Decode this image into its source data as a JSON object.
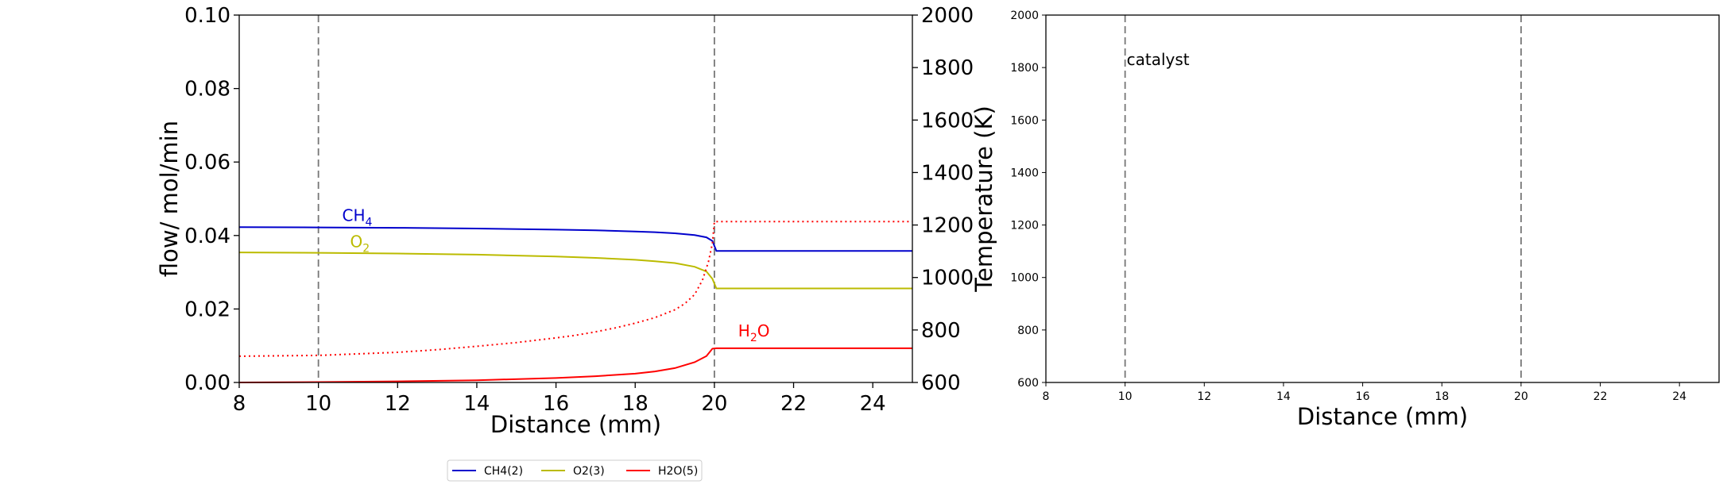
{
  "chart_data": [
    {
      "type": "line",
      "xlabel": "Distance (mm)",
      "ylabel": "flow/ mol/min",
      "y2label": "Temperature (K)",
      "xlim": [
        8,
        25
      ],
      "ylim": [
        0,
        0.1
      ],
      "y2lim": [
        600,
        2000
      ],
      "xticks": [
        "8",
        "10",
        "12",
        "14",
        "16",
        "18",
        "20",
        "22",
        "24"
      ],
      "yticks": [
        "0.00",
        "0.02",
        "0.04",
        "0.06",
        "0.08",
        "0.10"
      ],
      "y2ticks": [
        "600",
        "800",
        "1000",
        "1200",
        "1400",
        "1600",
        "1800",
        "2000"
      ],
      "vlines": [
        10,
        20
      ],
      "series": [
        {
          "name": "CH4(2)",
          "color": "#0000cc",
          "style": "solid",
          "axis": "left",
          "x": [
            8,
            10,
            12,
            14,
            16,
            17,
            18,
            18.5,
            19,
            19.5,
            19.8,
            19.95,
            20.05,
            20.3,
            22,
            24,
            25
          ],
          "values": [
            0.0423,
            0.0422,
            0.0421,
            0.0419,
            0.0416,
            0.0414,
            0.0411,
            0.0409,
            0.0406,
            0.0401,
            0.0395,
            0.0385,
            0.0358,
            0.0358,
            0.0358,
            0.0358,
            0.0358
          ],
          "label": "CH",
          "label_sub": "4",
          "label_pos": [
            10.6,
            0.044
          ]
        },
        {
          "name": "O2(3)",
          "color": "#bbbb00",
          "style": "solid",
          "axis": "left",
          "x": [
            8,
            10,
            12,
            14,
            16,
            17,
            18,
            18.5,
            19,
            19.5,
            19.8,
            19.95,
            20.05,
            20.3,
            22,
            24,
            25
          ],
          "values": [
            0.0354,
            0.0353,
            0.0351,
            0.0348,
            0.0343,
            0.0339,
            0.0334,
            0.033,
            0.0325,
            0.0315,
            0.0302,
            0.0282,
            0.0256,
            0.0256,
            0.0256,
            0.0256,
            0.0256
          ],
          "label": "O",
          "label_sub": "2",
          "label_pos": [
            10.8,
            0.0368
          ]
        },
        {
          "name": "H2O(5)",
          "color": "#ff0000",
          "style": "solid",
          "axis": "left",
          "x": [
            8,
            10,
            12,
            14,
            16,
            17,
            18,
            18.5,
            19,
            19.5,
            19.8,
            19.95,
            20.05,
            20.3,
            22,
            24,
            25
          ],
          "values": [
            0.0,
            0.0001,
            0.0003,
            0.0006,
            0.0012,
            0.0017,
            0.0024,
            0.003,
            0.0039,
            0.0055,
            0.0072,
            0.0092,
            0.0093,
            0.0093,
            0.0093,
            0.0093,
            0.0093
          ],
          "label": "H",
          "label_sub": "2",
          "label_tail": "O",
          "label_pos": [
            20.6,
            0.0125
          ]
        },
        {
          "color": "#ff0000",
          "style": "dotted",
          "axis": "right",
          "x": [
            8,
            10,
            12,
            13,
            14,
            15,
            16,
            16.5,
            17,
            17.5,
            18,
            18.5,
            19,
            19.25,
            19.5,
            19.7,
            19.85,
            19.95,
            20.0,
            20.1,
            22,
            24,
            25
          ],
          "values": [
            700,
            703,
            715,
            725,
            738,
            752,
            770,
            780,
            793,
            808,
            826,
            847,
            877,
            900,
            935,
            990,
            1060,
            1130,
            1213,
            1213,
            1213,
            1213,
            1213
          ]
        }
      ],
      "legend": {
        "placement": "lower center",
        "entries": [
          {
            "label": "CH4(2)",
            "color": "#0000cc"
          },
          {
            "label": "O2(3)",
            "color": "#bbbb00"
          },
          {
            "label": "H2O(5)",
            "color": "#ff0000"
          }
        ]
      }
    },
    {
      "type": "line",
      "xlabel": "Distance (mm)",
      "ylabel": "",
      "xlim": [
        8,
        25
      ],
      "ylim": [
        600,
        2000
      ],
      "xticks": [
        "8",
        "10",
        "12",
        "14",
        "16",
        "18",
        "20",
        "22",
        "24"
      ],
      "yticks": [
        "600",
        "800",
        "1000",
        "1200",
        "1400",
        "1600",
        "1800",
        "2000"
      ],
      "vlines": [
        10,
        20
      ],
      "annotation": "catalyst",
      "annotation_pos": [
        10,
        1830
      ],
      "series": []
    }
  ]
}
